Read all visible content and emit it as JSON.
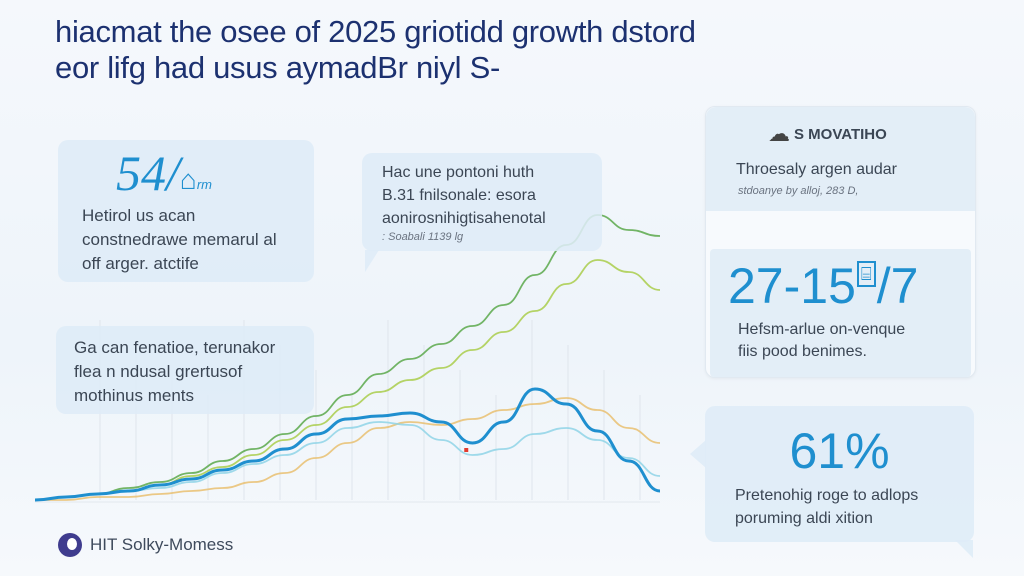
{
  "title": {
    "line1": "hiacmat the osee of 2025 griotidd growth dstord",
    "line2": "eor lifg had usus aymadBr niyl S-"
  },
  "cards": {
    "left_top": {
      "stat": "54/",
      "stat_suffix": "rm",
      "text": [
        "Hetirol us acan",
        "constnedrawe memarul al",
        "off arger. atctife"
      ]
    },
    "left_bottom": {
      "text": [
        "Ga can fenatioe, terunakor",
        "flea n ndusal grertusof",
        "mothinus ments"
      ]
    },
    "center_callout": {
      "text": [
        "Hac une pontoni huth",
        "B.31 fnilsonale: esora",
        "aonirosnihigtisahenotal"
      ],
      "note": ": Soabali 1139 lg"
    },
    "right_top": {
      "heading": "S MOVATIHO",
      "text": "Throesaly argen audar",
      "note": "stdoanye by alloj, 283 D,",
      "stat": "27-15",
      "stat_end": "/7",
      "desc": [
        "Hefsm-arlue on-venque",
        "fiis pood benimes."
      ]
    },
    "right_bottom": {
      "stat": "61%",
      "desc": [
        "Pretenohig roge to adlops",
        "poruming aldi xition"
      ]
    }
  },
  "footer": {
    "logo_text": "HIT Solky-Momess"
  },
  "icons": {
    "cloud": "cloud-icon",
    "house": "house-icon",
    "building": "building-icon",
    "logo": "logo-mark-icon"
  },
  "colors": {
    "title": "#1c3170",
    "accent": "#1f8fcf",
    "card": "#deecf7"
  },
  "chart_data": {
    "type": "line",
    "title": "",
    "xlabel": "",
    "ylabel": "",
    "grid": false,
    "legend": "none",
    "x": [
      0,
      1,
      2,
      3,
      4,
      5,
      6,
      7,
      8,
      9,
      10,
      11,
      12,
      13,
      14,
      15,
      16,
      17,
      18,
      19,
      20
    ],
    "ylim": [
      0,
      100
    ],
    "series": [
      {
        "color": "#5aa84a",
        "values": [
          0,
          1,
          2,
          4,
          6,
          9,
          13,
          17,
          22,
          28,
          35,
          42,
          47,
          52,
          58,
          65,
          75,
          85,
          95,
          90,
          88
        ]
      },
      {
        "color": "#a9cc4a",
        "values": [
          0,
          1,
          2,
          3,
          5,
          8,
          11,
          15,
          20,
          25,
          31,
          36,
          40,
          44,
          50,
          56,
          63,
          72,
          80,
          76,
          70
        ]
      },
      {
        "color": "#e9c070",
        "values": [
          0,
          0,
          1,
          1,
          2,
          3,
          4,
          6,
          9,
          14,
          19,
          24,
          26,
          25,
          27,
          30,
          32,
          34,
          30,
          24,
          19
        ]
      },
      {
        "color": "#8fd3e6",
        "values": [
          0,
          1,
          2,
          3,
          4,
          6,
          9,
          12,
          15,
          19,
          24,
          26,
          25,
          20,
          15,
          17,
          22,
          24,
          20,
          14,
          8
        ]
      },
      {
        "color": "#1f8fcf",
        "values": [
          0,
          1,
          2,
          3,
          5,
          7,
          10,
          13,
          17,
          22,
          27,
          28,
          29,
          26,
          19,
          26,
          37,
          32,
          23,
          13,
          3
        ]
      }
    ]
  }
}
